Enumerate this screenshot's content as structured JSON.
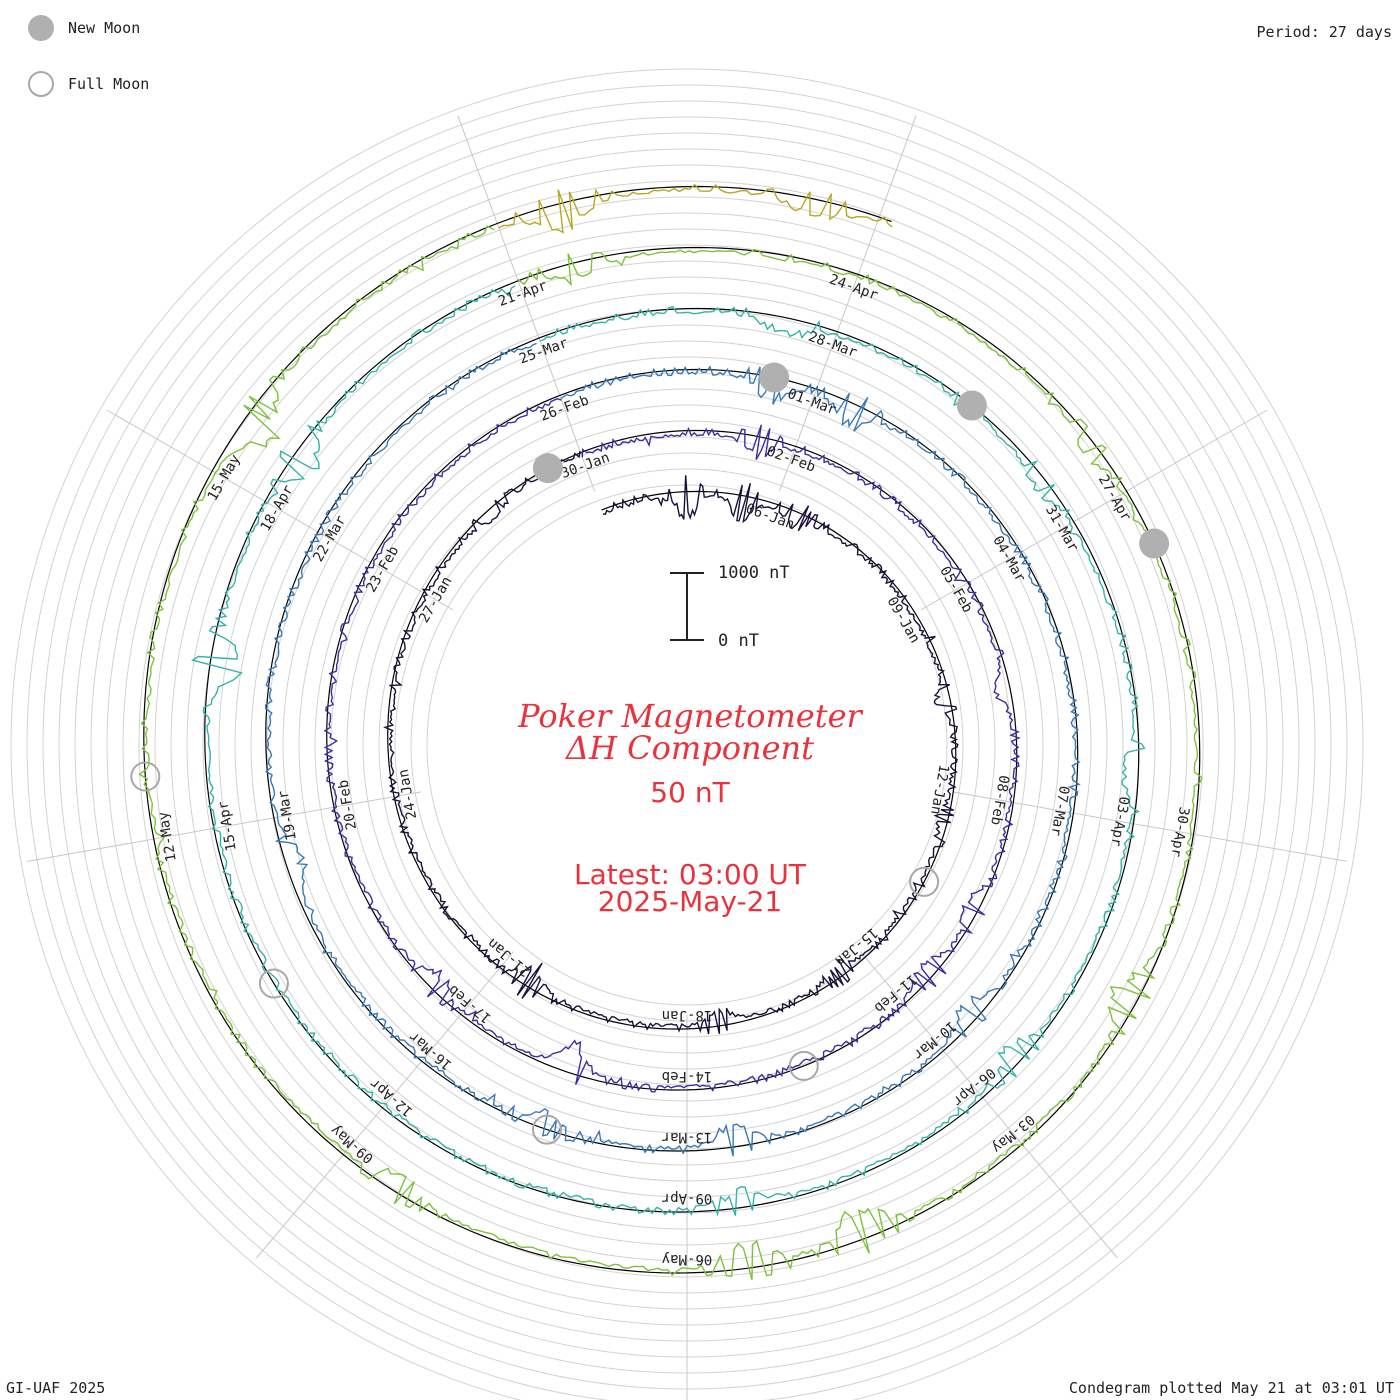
{
  "legend": {
    "new_moon_label": "New Moon",
    "full_moon_label": "Full Moon",
    "new_moon_color": "#b0b0b0",
    "full_moon_color": "#a8a8a8"
  },
  "period_label": "Period: 27 days",
  "footer_left": "GI-UAF 2025",
  "footer_right": "Condegram plotted May 21 at 03:01 UT",
  "center": {
    "title_line1": "Poker Magnetometer",
    "title_line2": "ΔH Component",
    "grid_step": "50 nT",
    "latest_line": "Latest: 03:00 UT",
    "latest_date": "2025-May-21",
    "text_color": "#e8323c"
  },
  "scale_bar": {
    "top_label": "1000 nT",
    "bottom_label": "0 nT"
  },
  "chart_data": {
    "type": "line",
    "title": "Poker Magnetometer ΔH Component",
    "period_days": 27,
    "grid_step_nT": 50,
    "scale_bar_nT": [
      0,
      1000
    ],
    "start_date": "2025-01-03",
    "end_date": "2025-05-21",
    "tick_labels": [
      "06-Jan",
      "09-Jan",
      "12-Jan",
      "15-Jan",
      "18-Jan",
      "21-Jan",
      "24-Jan",
      "27-Jan",
      "30-Jan",
      "02-Feb",
      "05-Feb",
      "08-Feb",
      "11-Feb",
      "14-Feb",
      "17-Feb",
      "20-Feb",
      "23-Feb",
      "26-Feb",
      "01-Mar",
      "04-Mar",
      "07-Mar",
      "10-Mar",
      "13-Mar",
      "16-Mar",
      "19-Mar",
      "22-Mar",
      "25-Mar",
      "28-Mar",
      "31-Mar",
      "03-Apr",
      "06-Apr",
      "09-Apr",
      "12-Apr",
      "15-Apr",
      "18-Apr",
      "21-Apr",
      "24-Apr",
      "27-Apr",
      "30-Apr",
      "03-May",
      "06-May",
      "09-May",
      "12-May",
      "15-May"
    ],
    "new_moons": [
      "2025-01-29",
      "2025-02-28",
      "2025-03-29",
      "2025-04-27"
    ],
    "full_moons": [
      "2025-01-13",
      "2025-02-12",
      "2025-03-14",
      "2025-04-13",
      "2025-05-12"
    ],
    "disturbances": [
      {
        "date": "2025-01-04",
        "nT": 450
      },
      {
        "date": "2025-01-05",
        "nT": 380
      },
      {
        "date": "2025-01-06",
        "nT": 300
      },
      {
        "date": "2025-01-10",
        "nT": 180
      },
      {
        "date": "2025-01-12",
        "nT": 150
      },
      {
        "date": "2025-01-15",
        "nT": 220
      },
      {
        "date": "2025-01-17",
        "nT": 250
      },
      {
        "date": "2025-01-20",
        "nT": 350
      },
      {
        "date": "2025-01-28",
        "nT": 150
      },
      {
        "date": "2025-02-01",
        "nT": 300
      },
      {
        "date": "2025-02-06",
        "nT": 200
      },
      {
        "date": "2025-02-09",
        "nT": 250
      },
      {
        "date": "2025-02-10",
        "nT": 280
      },
      {
        "date": "2025-02-15",
        "nT": 450
      },
      {
        "date": "2025-02-17",
        "nT": 250
      },
      {
        "date": "2025-02-28",
        "nT": 450
      },
      {
        "date": "2025-03-01",
        "nT": 380
      },
      {
        "date": "2025-03-09",
        "nT": 330
      },
      {
        "date": "2025-03-12",
        "nT": 350
      },
      {
        "date": "2025-03-14",
        "nT": 250
      },
      {
        "date": "2025-03-18",
        "nT": 280
      },
      {
        "date": "2025-03-27",
        "nT": 300
      },
      {
        "date": "2025-03-30",
        "nT": 200
      },
      {
        "date": "2025-04-02",
        "nT": 250
      },
      {
        "date": "2025-04-05",
        "nT": 300
      },
      {
        "date": "2025-04-08",
        "nT": 250
      },
      {
        "date": "2025-04-16",
        "nT": 500
      },
      {
        "date": "2025-04-18",
        "nT": 400
      },
      {
        "date": "2025-04-21",
        "nT": 300
      },
      {
        "date": "2025-04-26",
        "nT": 200
      },
      {
        "date": "2025-05-01",
        "nT": 450
      },
      {
        "date": "2025-05-04",
        "nT": 500
      },
      {
        "date": "2025-05-05",
        "nT": 400
      },
      {
        "date": "2025-05-08",
        "nT": 300
      },
      {
        "date": "2025-05-15",
        "nT": 550
      },
      {
        "date": "2025-05-18",
        "nT": 450
      },
      {
        "date": "2025-05-20",
        "nT": 300
      }
    ],
    "series_colors": [
      "#1a0f3a",
      "#3a2fa0",
      "#3778b8",
      "#35b3a8",
      "#7cc23a",
      "#b8a820",
      "#c87818",
      "#c42a12"
    ]
  }
}
